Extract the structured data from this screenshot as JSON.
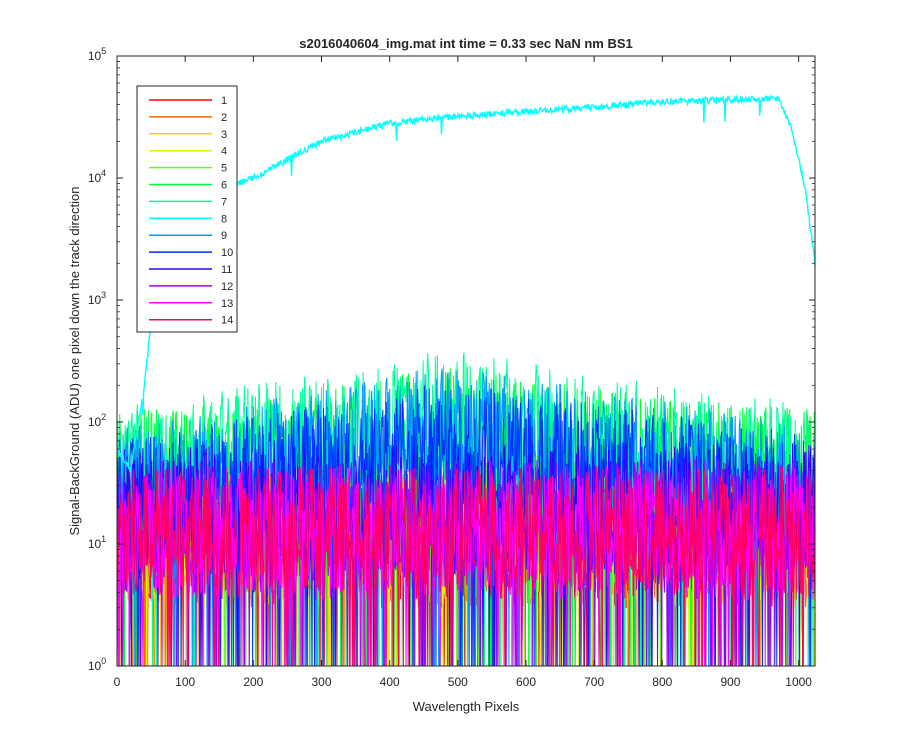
{
  "chart_data": {
    "type": "line",
    "title": "s2016040604_img.mat int time = 0.33 sec  NaN nm BS1",
    "xlabel": "Wavelength Pixels",
    "ylabel": "Signal-BackGround (ADU) one pixel down the track direction",
    "xlim": [
      0,
      1024
    ],
    "ylim": [
      1,
      100000
    ],
    "y_scale": "log",
    "grid": false,
    "legend_position": "top-left",
    "x_ticks": [
      "0",
      "100",
      "200",
      "300",
      "400",
      "500",
      "600",
      "700",
      "800",
      "900",
      "1000"
    ],
    "x_tick_values": [
      0,
      100,
      200,
      300,
      400,
      500,
      600,
      700,
      800,
      900,
      1000
    ],
    "y_ticks": [
      {
        "base": "10",
        "exp": "0",
        "value": 1
      },
      {
        "base": "10",
        "exp": "1",
        "value": 10
      },
      {
        "base": "10",
        "exp": "2",
        "value": 100
      },
      {
        "base": "10",
        "exp": "3",
        "value": 1000
      },
      {
        "base": "10",
        "exp": "4",
        "value": 10000
      },
      {
        "base": "10",
        "exp": "5",
        "value": 100000
      }
    ],
    "series": [
      {
        "name": "1",
        "color": "#ff0000",
        "kind": "noise",
        "profile": {
          "x": [
            0,
            1024
          ],
          "y": [
            12,
            12
          ]
        }
      },
      {
        "name": "2",
        "color": "#ff6a00",
        "kind": "noise",
        "profile": {
          "x": [
            0,
            1024
          ],
          "y": [
            12,
            12
          ]
        }
      },
      {
        "name": "3",
        "color": "#ffcc00",
        "kind": "noise",
        "profile": {
          "x": [
            0,
            1024
          ],
          "y": [
            12,
            12
          ]
        }
      },
      {
        "name": "4",
        "color": "#ccff00",
        "kind": "noise",
        "profile": {
          "x": [
            0,
            1024
          ],
          "y": [
            14,
            14
          ]
        }
      },
      {
        "name": "5",
        "color": "#66ff00",
        "kind": "noise",
        "profile": {
          "x": [
            0,
            1024
          ],
          "y": [
            16,
            18
          ]
        }
      },
      {
        "name": "6",
        "color": "#00ff33",
        "kind": "noise",
        "profile": {
          "x": [
            0,
            300,
            480,
            700,
            1024
          ],
          "y": [
            40,
            60,
            90,
            60,
            40
          ]
        }
      },
      {
        "name": "7",
        "color": "#00ff99",
        "kind": "noise",
        "profile": {
          "x": [
            0,
            300,
            480,
            700,
            1024
          ],
          "y": [
            45,
            80,
            130,
            80,
            45
          ]
        }
      },
      {
        "name": "8",
        "color": "#00ffff",
        "kind": "spectrum",
        "profile": {
          "x": [
            0,
            20,
            40,
            60,
            100,
            150,
            200,
            300,
            400,
            500,
            600,
            700,
            800,
            900,
            970,
            990,
            1010,
            1024
          ],
          "y": [
            60,
            40,
            200,
            2000,
            6000,
            8000,
            10000,
            20000,
            28000,
            32000,
            35000,
            38000,
            42000,
            44000,
            45000,
            25000,
            8000,
            2000
          ]
        }
      },
      {
        "name": "9",
        "color": "#0099ff",
        "kind": "noise",
        "profile": {
          "x": [
            0,
            300,
            480,
            700,
            1024
          ],
          "y": [
            30,
            60,
            95,
            60,
            30
          ]
        }
      },
      {
        "name": "10",
        "color": "#0033ff",
        "kind": "noise",
        "profile": {
          "x": [
            0,
            300,
            480,
            700,
            1024
          ],
          "y": [
            25,
            45,
            70,
            45,
            25
          ]
        }
      },
      {
        "name": "11",
        "color": "#3300ff",
        "kind": "noise",
        "profile": {
          "x": [
            0,
            1024
          ],
          "y": [
            20,
            22
          ]
        }
      },
      {
        "name": "12",
        "color": "#9900ff",
        "kind": "noise",
        "profile": {
          "x": [
            0,
            1024
          ],
          "y": [
            16,
            16
          ]
        }
      },
      {
        "name": "13",
        "color": "#ff00ff",
        "kind": "noise",
        "profile": {
          "x": [
            0,
            1024
          ],
          "y": [
            14,
            14
          ]
        }
      },
      {
        "name": "14",
        "color": "#ff0066",
        "kind": "noise",
        "profile": {
          "x": [
            0,
            1024
          ],
          "y": [
            14,
            14
          ]
        }
      }
    ]
  }
}
